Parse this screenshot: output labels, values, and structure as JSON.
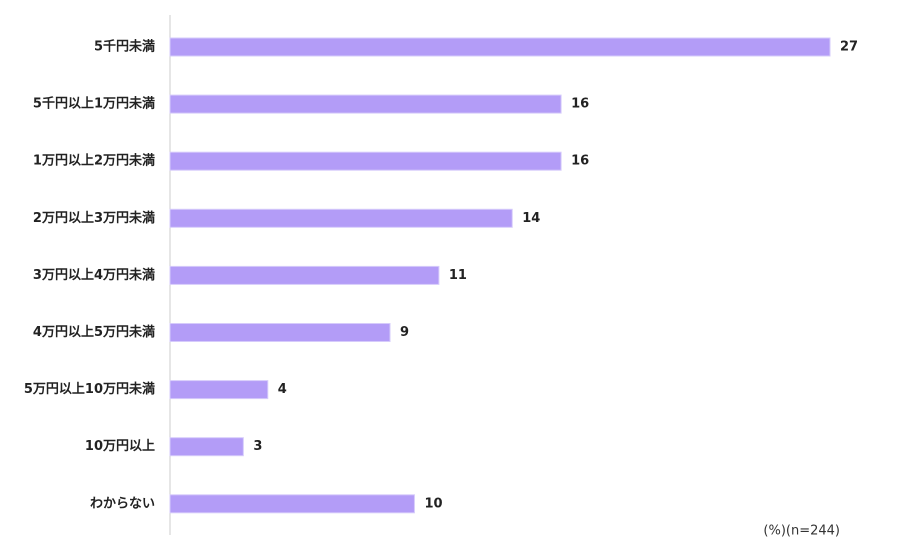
{
  "chart_data": {
    "type": "bar",
    "orientation": "horizontal",
    "categories": [
      "5千円未満",
      "5千円以上1万円未満",
      "1万円以上2万円未満",
      "2万円以上3万円未満",
      "3万円以上4万円未満",
      "4万円以上5万円未満",
      "5万円以上10万円未満",
      "10万円以上",
      "わからない"
    ],
    "values": [
      27,
      16,
      16,
      14,
      11,
      9,
      4,
      3,
      10
    ],
    "color": "#b39cf7",
    "note": "(%)(n=244)"
  }
}
